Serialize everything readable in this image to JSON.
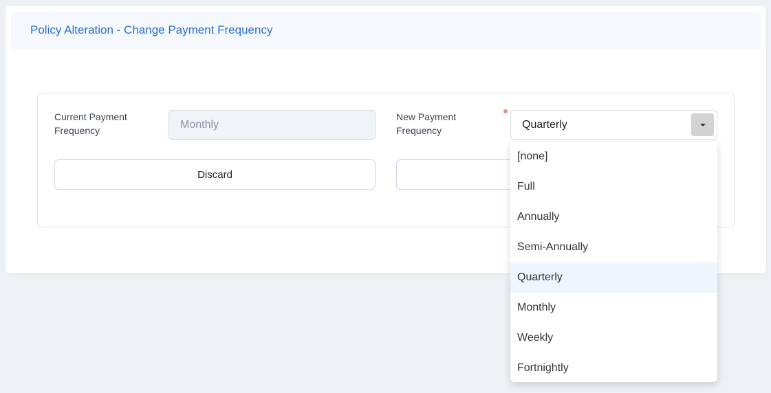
{
  "header": {
    "title": "Policy Alteration - Change Payment Frequency"
  },
  "form": {
    "current_label": "Current Payment Frequency",
    "current_value": "Monthly",
    "new_label": "New Payment Frequency",
    "new_value": "Quarterly",
    "required": true,
    "discard_label": "Discard"
  },
  "dropdown": {
    "options": [
      "[none]",
      "Full",
      "Annually",
      "Semi-Annually",
      "Quarterly",
      "Monthly",
      "Weekly",
      "Fortnightly"
    ],
    "highlighted": "Quarterly"
  },
  "colors": {
    "accent": "#2f6fd0",
    "required_dot": "#f28b82",
    "highlight": "#eef5fd"
  },
  "icons": {
    "select_toggle": "caret-down-icon"
  }
}
